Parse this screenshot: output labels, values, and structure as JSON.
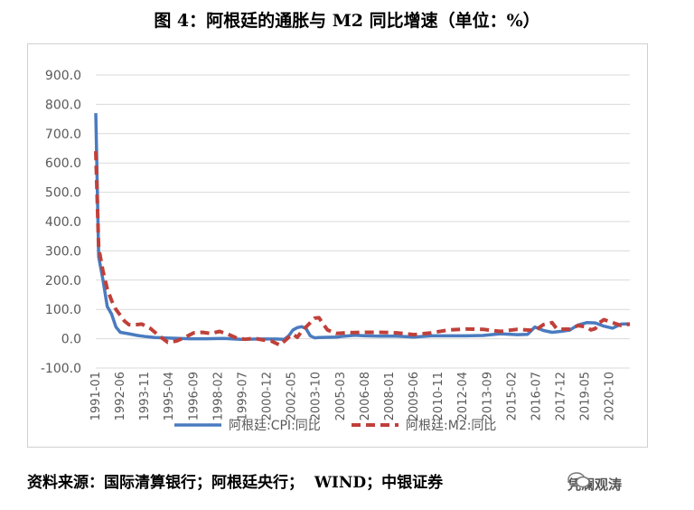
{
  "title": "图 4：阿根廷的通胀与 M2 同比增速（单位：%）",
  "source": "资料来源：国际清算银行；阿根廷央行；  WIND；中银证券",
  "watermark": "凭澜观涛",
  "colors": {
    "cpi": "#4a7bbf",
    "m2": "#c0403a",
    "grid": "#d9d9d9",
    "axis_text": "#595959"
  },
  "chart_data": {
    "type": "line",
    "title": "",
    "xlabel": "",
    "ylabel": "",
    "ylim": [
      -100,
      900
    ],
    "yticks": [
      -100,
      0,
      100,
      200,
      300,
      400,
      500,
      600,
      700,
      800,
      900
    ],
    "ytick_labels": [
      "-100.0",
      "0.0",
      "100.0",
      "200.0",
      "300.0",
      "400.0",
      "500.0",
      "600.0",
      "700.0",
      "800.0",
      "900.0"
    ],
    "x_start": "1991-01",
    "x_end": "2021-12",
    "xtick_labels": [
      "1991-01",
      "1992-06",
      "1993-11",
      "1995-04",
      "1996-09",
      "1998-02",
      "1999-07",
      "2000-12",
      "2002-05",
      "2003-10",
      "2005-03",
      "2006-08",
      "2008-01",
      "2009-06",
      "2010-11",
      "2012-04",
      "2013-09",
      "2015-02",
      "2016-07",
      "2017-12",
      "2019-05",
      "2020-10"
    ],
    "grid": true,
    "legend_position": "bottom",
    "series": [
      {
        "name": "阿根廷:CPI:同比",
        "style": "solid",
        "points": [
          [
            "1991-01",
            770
          ],
          [
            "1991-03",
            280
          ],
          [
            "1991-06",
            200
          ],
          [
            "1991-09",
            110
          ],
          [
            "1991-12",
            84
          ],
          [
            "1992-03",
            40
          ],
          [
            "1992-06",
            22
          ],
          [
            "1992-12",
            17
          ],
          [
            "1993-06",
            11
          ],
          [
            "1993-12",
            7
          ],
          [
            "1994-06",
            4
          ],
          [
            "1995-06",
            2
          ],
          [
            "1996-06",
            0
          ],
          [
            "1997-06",
            0
          ],
          [
            "1998-06",
            1
          ],
          [
            "1999-06",
            -2
          ],
          [
            "2000-06",
            -1
          ],
          [
            "2001-06",
            -1
          ],
          [
            "2001-12",
            -2
          ],
          [
            "2002-03",
            10
          ],
          [
            "2002-06",
            30
          ],
          [
            "2002-09",
            38
          ],
          [
            "2002-12",
            41
          ],
          [
            "2003-03",
            35
          ],
          [
            "2003-06",
            10
          ],
          [
            "2003-09",
            3
          ],
          [
            "2003-12",
            4
          ],
          [
            "2004-06",
            5
          ],
          [
            "2005-01",
            6
          ],
          [
            "2005-06",
            9
          ],
          [
            "2006-01",
            12
          ],
          [
            "2006-08",
            10
          ],
          [
            "2007-06",
            9
          ],
          [
            "2008-06",
            9
          ],
          [
            "2009-06",
            6
          ],
          [
            "2010-06",
            10
          ],
          [
            "2011-06",
            10
          ],
          [
            "2012-06",
            10
          ],
          [
            "2013-06",
            11
          ],
          [
            "2014-06",
            17
          ],
          [
            "2015-06",
            14
          ],
          [
            "2016-01",
            15
          ],
          [
            "2016-06",
            40
          ],
          [
            "2016-12",
            28
          ],
          [
            "2017-06",
            22
          ],
          [
            "2017-12",
            25
          ],
          [
            "2018-06",
            29
          ],
          [
            "2018-12",
            47
          ],
          [
            "2019-06",
            55
          ],
          [
            "2019-12",
            54
          ],
          [
            "2020-06",
            43
          ],
          [
            "2020-12",
            36
          ],
          [
            "2021-06",
            50
          ],
          [
            "2021-12",
            51
          ]
        ]
      },
      {
        "name": "阿根廷:M2:同比",
        "style": "dashed",
        "points": [
          [
            "1991-01",
            640
          ],
          [
            "1991-03",
            310
          ],
          [
            "1991-06",
            230
          ],
          [
            "1991-09",
            170
          ],
          [
            "1991-12",
            130
          ],
          [
            "1992-03",
            100
          ],
          [
            "1992-06",
            80
          ],
          [
            "1992-09",
            60
          ],
          [
            "1992-12",
            48
          ],
          [
            "1993-03",
            47
          ],
          [
            "1993-09",
            50
          ],
          [
            "1994-03",
            35
          ],
          [
            "1994-09",
            10
          ],
          [
            "1995-03",
            -12
          ],
          [
            "1995-09",
            -8
          ],
          [
            "1996-03",
            5
          ],
          [
            "1996-09",
            20
          ],
          [
            "1997-03",
            22
          ],
          [
            "1997-09",
            18
          ],
          [
            "1998-03",
            25
          ],
          [
            "1998-09",
            15
          ],
          [
            "1999-03",
            2
          ],
          [
            "1999-09",
            -2
          ],
          [
            "2000-03",
            2
          ],
          [
            "2000-09",
            -4
          ],
          [
            "2001-03",
            -8
          ],
          [
            "2001-09",
            -22
          ],
          [
            "2002-03",
            5
          ],
          [
            "2002-06",
            15
          ],
          [
            "2002-09",
            5
          ],
          [
            "2002-12",
            25
          ],
          [
            "2003-03",
            40
          ],
          [
            "2003-06",
            55
          ],
          [
            "2003-09",
            70
          ],
          [
            "2003-12",
            72
          ],
          [
            "2004-03",
            50
          ],
          [
            "2004-06",
            30
          ],
          [
            "2004-12",
            18
          ],
          [
            "2005-06",
            20
          ],
          [
            "2006-06",
            22
          ],
          [
            "2007-06",
            22
          ],
          [
            "2008-06",
            20
          ],
          [
            "2009-06",
            14
          ],
          [
            "2010-06",
            20
          ],
          [
            "2011-06",
            30
          ],
          [
            "2012-06",
            33
          ],
          [
            "2013-06",
            32
          ],
          [
            "2014-06",
            25
          ],
          [
            "2015-06",
            32
          ],
          [
            "2016-06",
            28
          ],
          [
            "2016-12",
            48
          ],
          [
            "2017-06",
            55
          ],
          [
            "2017-09",
            35
          ],
          [
            "2017-12",
            32
          ],
          [
            "2018-06",
            33
          ],
          [
            "2018-12",
            45
          ],
          [
            "2019-06",
            40
          ],
          [
            "2019-09",
            30
          ],
          [
            "2019-12",
            35
          ],
          [
            "2020-03",
            55
          ],
          [
            "2020-06",
            65
          ],
          [
            "2020-12",
            55
          ],
          [
            "2021-06",
            45
          ],
          [
            "2021-12",
            50
          ]
        ]
      }
    ]
  }
}
